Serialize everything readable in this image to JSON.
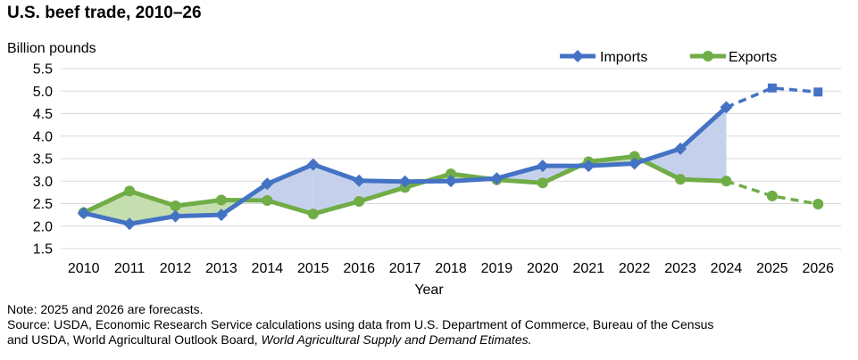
{
  "chart_data": {
    "type": "line",
    "title": "U.S. beef trade, 2010–26",
    "ylabel": "Billion pounds",
    "xlabel": "Year",
    "ylim": [
      1.5,
      5.5
    ],
    "yticks": [
      "1.5",
      "2.0",
      "2.5",
      "3.0",
      "3.5",
      "4.0",
      "4.5",
      "5.0",
      "5.5"
    ],
    "categories": [
      "2010",
      "2011",
      "2012",
      "2013",
      "2014",
      "2015",
      "2016",
      "2017",
      "2018",
      "2019",
      "2020",
      "2021",
      "2022",
      "2023",
      "2024",
      "2025",
      "2026"
    ],
    "forecast_start_index": 14,
    "grid": true,
    "legend_position": "top-right",
    "series": [
      {
        "name": "Imports",
        "color": "#4472C4",
        "marker": "diamond",
        "forecast_marker": "square",
        "values": [
          2.29,
          2.05,
          2.22,
          2.25,
          2.94,
          3.37,
          3.01,
          2.99,
          3.0,
          3.06,
          3.34,
          3.34,
          3.39,
          3.72,
          4.64,
          5.07,
          4.98
        ]
      },
      {
        "name": "Exports",
        "color": "#70AD47",
        "marker": "circle",
        "forecast_marker": "circle",
        "values": [
          2.3,
          2.78,
          2.45,
          2.58,
          2.57,
          2.27,
          2.55,
          2.86,
          3.16,
          3.03,
          2.96,
          3.43,
          3.55,
          3.04,
          3.0,
          2.67,
          2.49
        ]
      }
    ],
    "fill_colors": {
      "imports_above": "#C5D1EC",
      "exports_above": "#C5DEB0"
    }
  },
  "note": "Note: 2025 and 2026 are forecasts.",
  "source_line1": "Source: USDA, Economic Research Service calculations using data from U.S. Department of Commerce, Bureau of the Census",
  "source_line2_plain": "and USDA, World Agricultural Outlook Board, ",
  "source_line2_italic": "World Agricultural Supply and Demand Etimates."
}
